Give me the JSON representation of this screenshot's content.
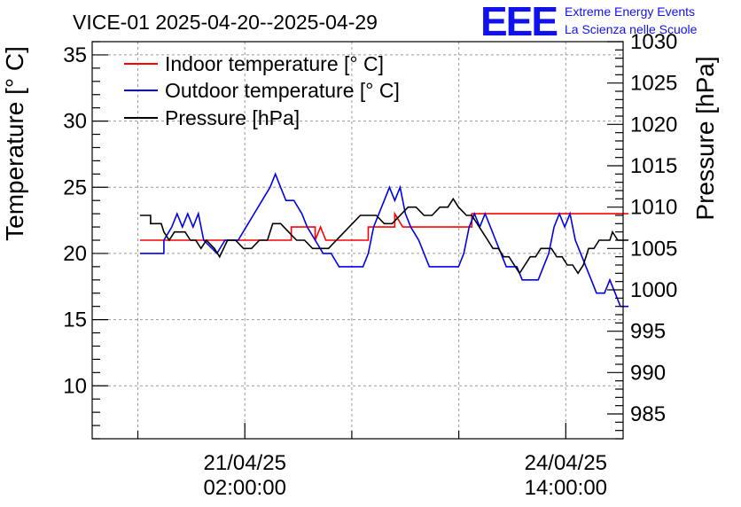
{
  "logo": {
    "mark": "EEE",
    "line1": "Extreme Energy Events",
    "line2": "La Scienza nelle Scuole"
  },
  "chart_data": {
    "type": "line",
    "title": "VICE-01 2025-04-20--2025-04-29",
    "ylabel": "Temperature [° C]",
    "y2label": "Pressure [hPa]",
    "ylim": [
      6,
      36
    ],
    "y2lim": [
      982,
      1030
    ],
    "yticks": [
      10,
      15,
      20,
      25,
      30,
      35
    ],
    "y2ticks": [
      985,
      990,
      995,
      1000,
      1005,
      1010,
      1015,
      1020,
      1025,
      1030
    ],
    "xlim": [
      0,
      200
    ],
    "xticks": [
      {
        "x": 57.5,
        "date": "21/04/25",
        "time": "02:00:00"
      },
      {
        "x": 178.4,
        "date": "24/04/25",
        "time": "14:00:00"
      }
    ],
    "grid": true,
    "legend_position": "top-left",
    "series": [
      {
        "name": "Indoor temperature [° C]",
        "axis": "left",
        "color": "#ff0000",
        "points": [
          [
            18,
            21
          ],
          [
            75,
            21
          ],
          [
            75,
            22
          ],
          [
            84,
            22
          ],
          [
            84,
            21
          ],
          [
            86,
            22
          ],
          [
            88,
            21
          ],
          [
            104,
            21
          ],
          [
            104,
            22
          ],
          [
            114,
            22
          ],
          [
            114,
            23
          ],
          [
            117,
            22
          ],
          [
            143,
            22
          ],
          [
            143,
            23
          ],
          [
            202,
            23
          ]
        ]
      },
      {
        "name": "Outdoor temperature [° C]",
        "axis": "left",
        "color": "#0000ee",
        "points": [
          [
            18,
            20
          ],
          [
            27,
            20
          ],
          [
            27,
            21
          ],
          [
            30,
            22
          ],
          [
            32,
            23
          ],
          [
            34,
            22
          ],
          [
            36,
            23
          ],
          [
            38,
            22
          ],
          [
            40,
            23
          ],
          [
            42,
            21
          ],
          [
            47,
            20
          ],
          [
            50,
            21
          ],
          [
            55,
            21
          ],
          [
            58,
            22
          ],
          [
            61,
            23
          ],
          [
            64,
            24
          ],
          [
            67,
            25
          ],
          [
            69,
            26
          ],
          [
            71,
            25
          ],
          [
            73,
            24
          ],
          [
            76,
            24
          ],
          [
            79,
            23
          ],
          [
            81,
            22
          ],
          [
            84,
            21
          ],
          [
            87,
            20
          ],
          [
            90,
            20
          ],
          [
            93,
            19
          ],
          [
            102,
            19
          ],
          [
            104,
            20
          ],
          [
            106,
            22
          ],
          [
            108,
            23
          ],
          [
            110,
            24
          ],
          [
            112,
            25
          ],
          [
            114,
            24
          ],
          [
            116,
            25
          ],
          [
            118,
            23
          ],
          [
            120,
            22
          ],
          [
            123,
            21
          ],
          [
            125,
            20
          ],
          [
            127,
            19
          ],
          [
            138,
            19
          ],
          [
            140,
            20
          ],
          [
            142,
            22
          ],
          [
            144,
            23
          ],
          [
            146,
            22
          ],
          [
            148,
            23
          ],
          [
            150,
            22
          ],
          [
            152,
            21
          ],
          [
            154,
            20
          ],
          [
            156,
            19
          ],
          [
            160,
            19
          ],
          [
            162,
            18
          ],
          [
            168,
            18
          ],
          [
            170,
            19
          ],
          [
            172,
            20
          ],
          [
            174,
            22
          ],
          [
            176,
            23
          ],
          [
            178,
            22
          ],
          [
            180,
            23
          ],
          [
            182,
            21
          ],
          [
            184,
            20
          ],
          [
            186,
            19
          ],
          [
            188,
            18
          ],
          [
            190,
            17
          ],
          [
            193,
            17
          ],
          [
            195,
            18
          ],
          [
            197,
            17
          ],
          [
            199,
            16
          ],
          [
            202,
            16
          ]
        ]
      },
      {
        "name": "Pressure [hPa]",
        "axis": "right",
        "color": "#000000",
        "points": [
          [
            18,
            1009
          ],
          [
            22,
            1009
          ],
          [
            22,
            1008
          ],
          [
            26,
            1008
          ],
          [
            27,
            1007
          ],
          [
            29,
            1006
          ],
          [
            31,
            1007
          ],
          [
            35,
            1007
          ],
          [
            37,
            1006
          ],
          [
            39,
            1006
          ],
          [
            41,
            1005
          ],
          [
            43,
            1006
          ],
          [
            46,
            1005
          ],
          [
            48,
            1004
          ],
          [
            51,
            1006
          ],
          [
            54,
            1006
          ],
          [
            57,
            1005
          ],
          [
            60,
            1005
          ],
          [
            63,
            1006
          ],
          [
            66,
            1006
          ],
          [
            68,
            1008
          ],
          [
            71,
            1008
          ],
          [
            74,
            1007
          ],
          [
            77,
            1006
          ],
          [
            80,
            1006
          ],
          [
            83,
            1005
          ],
          [
            86,
            1005
          ],
          [
            89,
            1005
          ],
          [
            92,
            1006
          ],
          [
            95,
            1007
          ],
          [
            98,
            1008
          ],
          [
            101,
            1009
          ],
          [
            104,
            1009
          ],
          [
            107,
            1009
          ],
          [
            110,
            1008
          ],
          [
            113,
            1008
          ],
          [
            116,
            1009
          ],
          [
            119,
            1010
          ],
          [
            122,
            1010
          ],
          [
            125,
            1009
          ],
          [
            128,
            1009
          ],
          [
            131,
            1010
          ],
          [
            134,
            1010
          ],
          [
            136,
            1011
          ],
          [
            138,
            1010
          ],
          [
            141,
            1009
          ],
          [
            143,
            1009
          ],
          [
            145,
            1008
          ],
          [
            147,
            1007
          ],
          [
            149,
            1006
          ],
          [
            151,
            1005
          ],
          [
            153,
            1005
          ],
          [
            155,
            1004
          ],
          [
            157,
            1004
          ],
          [
            159,
            1003
          ],
          [
            161,
            1002
          ],
          [
            163,
            1003
          ],
          [
            165,
            1004
          ],
          [
            167,
            1004
          ],
          [
            169,
            1005
          ],
          [
            171,
            1005
          ],
          [
            173,
            1005
          ],
          [
            175,
            1004
          ],
          [
            177,
            1004
          ],
          [
            179,
            1003
          ],
          [
            181,
            1003
          ],
          [
            183,
            1002
          ],
          [
            185,
            1003
          ],
          [
            187,
            1005
          ],
          [
            189,
            1005
          ],
          [
            191,
            1006
          ],
          [
            193,
            1006
          ],
          [
            195,
            1006
          ],
          [
            196,
            1007
          ],
          [
            198,
            1006
          ],
          [
            202,
            1006
          ]
        ]
      }
    ]
  }
}
